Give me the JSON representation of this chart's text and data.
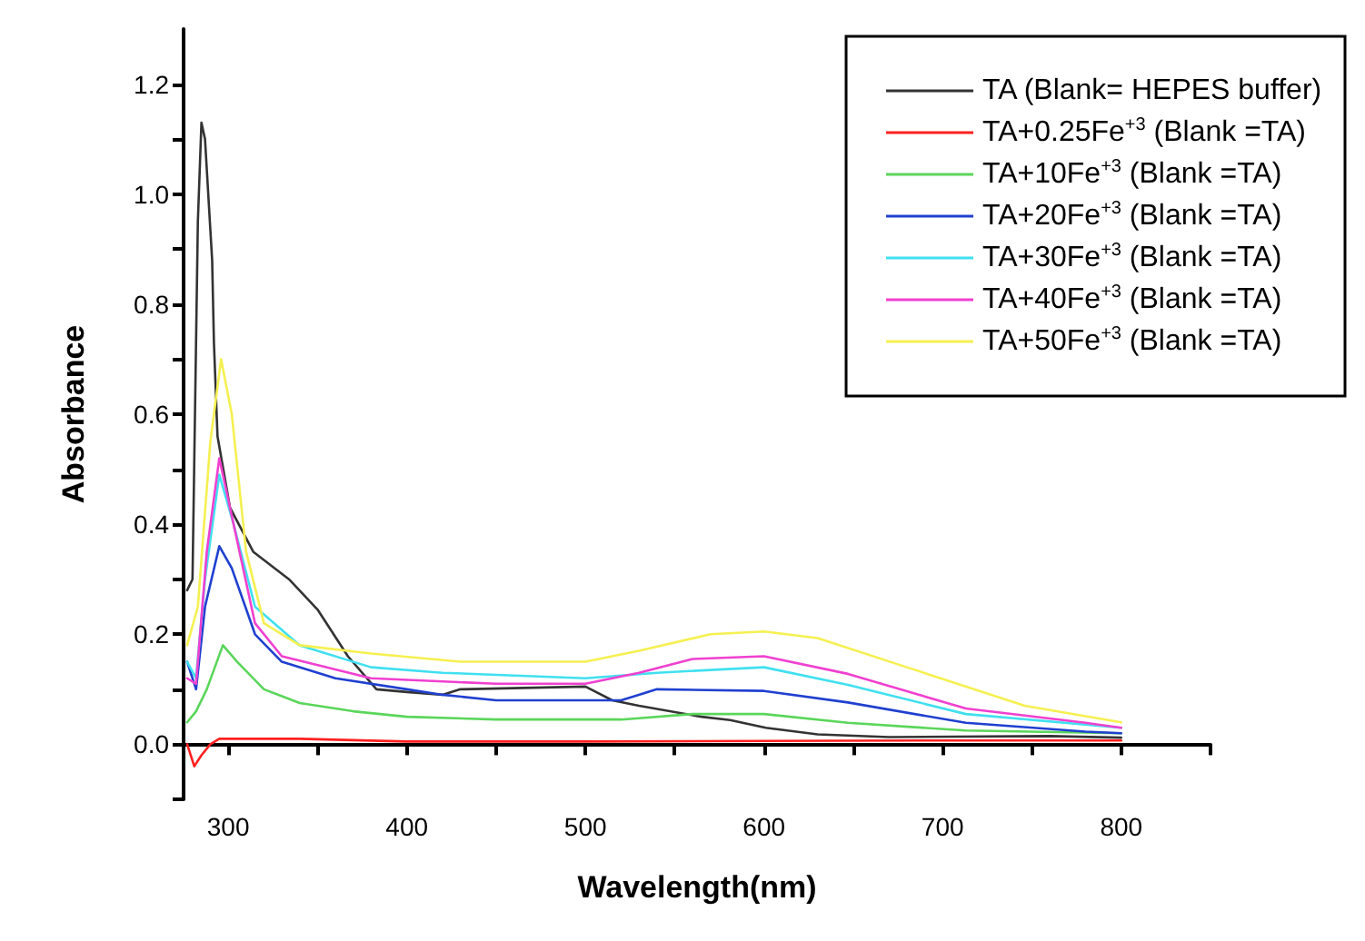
{
  "chart_data": {
    "type": "line",
    "xlabel": "Wavelength(nm)",
    "ylabel": "Absorbance",
    "xlim": [
      275,
      850
    ],
    "ylim": [
      -0.1,
      1.3
    ],
    "xticks": [
      300,
      {
        "value": 350,
        "label": null
      },
      400,
      {
        "value": 450,
        "label": null
      },
      500,
      {
        "value": 550,
        "label": null
      },
      600,
      {
        "value": 650,
        "label": null
      },
      700,
      {
        "value": 750,
        "label": null
      },
      800,
      {
        "value": 850,
        "label": null
      }
    ],
    "yticks": [
      {
        "value": -0.1,
        "label": null
      },
      {
        "value": 0,
        "label": "0.0"
      },
      {
        "value": 0.1,
        "label": null
      },
      0.2,
      {
        "value": 0.3,
        "label": null
      },
      0.4,
      {
        "value": 0.5,
        "label": null
      },
      0.6,
      {
        "value": 0.7,
        "label": null
      },
      0.8,
      {
        "value": 0.9,
        "label": null
      },
      {
        "value": 1,
        "label": "1.0"
      },
      {
        "value": 1.1,
        "label": null
      },
      1.2
    ],
    "legend": "top right",
    "marker": "none",
    "line_style": "solid",
    "series": [
      {
        "name": "TA (Blank= HEPES buffer)",
        "color": "#333333",
        "x": [
          277,
          280,
          283,
          285,
          287,
          291,
          292,
          294,
          301,
          314,
          334,
          350,
          367,
          383,
          400,
          420,
          430,
          500,
          515,
          530,
          565,
          581,
          601,
          630,
          670,
          760,
          800
        ],
        "values": [
          0.28,
          0.3,
          0.95,
          1.13,
          1.1,
          0.88,
          0.73,
          0.56,
          0.43,
          0.35,
          0.3,
          0.245,
          0.16,
          0.1,
          0.095,
          0.09,
          0.1,
          0.105,
          0.08,
          0.07,
          0.05,
          0.044,
          0.03,
          0.018,
          0.013,
          0.015,
          0.012
        ]
      },
      {
        "name": "TA+0.25Fe$^{+3}$ (Blank =TA)",
        "color": "#ff2020",
        "x": [
          277,
          281,
          285,
          290,
          295,
          340,
          400,
          500,
          600,
          700,
          800
        ],
        "values": [
          0,
          -0.04,
          -0.02,
          0,
          0.01,
          0.01,
          0.005,
          0.005,
          0.006,
          0.007,
          0.007
        ]
      },
      {
        "name": "TA+10Fe$^{+3}$ (Blank =TA)",
        "color": "#5ad65a",
        "x": [
          277,
          282,
          288,
          297,
          305,
          320,
          340,
          370,
          400,
          450,
          520,
          560,
          600,
          647,
          713,
          800
        ],
        "values": [
          0.04,
          0.06,
          0.1,
          0.18,
          0.15,
          0.1,
          0.075,
          0.06,
          0.05,
          0.045,
          0.045,
          0.055,
          0.055,
          0.039,
          0.025,
          0.02
        ]
      },
      {
        "name": "TA+20Fe$^{+3}$ (Blank =TA)",
        "color": "#2040d0",
        "x": [
          277,
          282,
          287,
          295,
          302,
          315,
          330,
          360,
          400,
          420,
          450,
          520,
          540,
          600,
          647,
          713,
          780,
          800
        ],
        "values": [
          0.15,
          0.1,
          0.25,
          0.36,
          0.32,
          0.2,
          0.15,
          0.12,
          0.1,
          0.09,
          0.08,
          0.08,
          0.1,
          0.097,
          0.076,
          0.039,
          0.023,
          0.02
        ]
      },
      {
        "name": "TA+30Fe$^{+3}$ (Blank =TA)",
        "color": "#40e0f0",
        "x": [
          277,
          282,
          287,
          295,
          303,
          315,
          340,
          380,
          420,
          500,
          540,
          600,
          647,
          713,
          800
        ],
        "values": [
          0.15,
          0.12,
          0.3,
          0.49,
          0.4,
          0.25,
          0.18,
          0.14,
          0.13,
          0.12,
          0.13,
          0.14,
          0.108,
          0.055,
          0.03
        ]
      },
      {
        "name": "TA+40Fe$^{+3}$ (Blank =TA)",
        "color": "#f040d0",
        "x": [
          277,
          282,
          288,
          295,
          303,
          315,
          330,
          380,
          450,
          500,
          530,
          560,
          600,
          647,
          713,
          780,
          800
        ],
        "values": [
          0.12,
          0.11,
          0.35,
          0.52,
          0.4,
          0.22,
          0.16,
          0.12,
          0.11,
          0.11,
          0.13,
          0.155,
          0.16,
          0.128,
          0.065,
          0.039,
          0.03
        ]
      },
      {
        "name": "TA+50Fe$^{+3}$ (Blank =TA)",
        "color": "#f5f050",
        "x": [
          277,
          283,
          290,
          296,
          302,
          310,
          320,
          340,
          380,
          430,
          500,
          530,
          570,
          600,
          630,
          680,
          746,
          800
        ],
        "values": [
          0.18,
          0.25,
          0.55,
          0.7,
          0.6,
          0.35,
          0.22,
          0.18,
          0.165,
          0.15,
          0.15,
          0.17,
          0.2,
          0.205,
          0.193,
          0.14,
          0.07,
          0.04
        ]
      }
    ]
  }
}
